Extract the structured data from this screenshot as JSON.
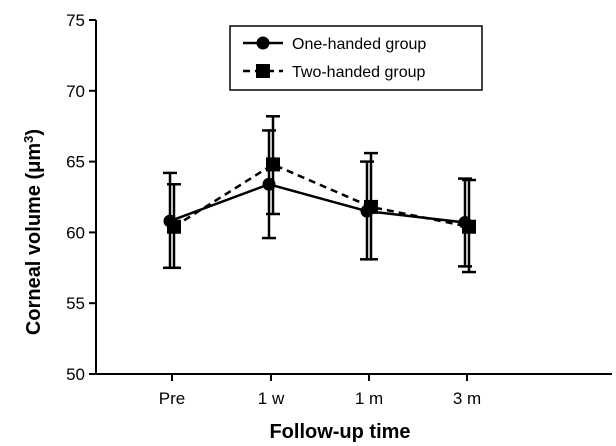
{
  "chart_data": {
    "type": "line",
    "categories": [
      "Pre",
      "1 w",
      "1 m",
      "3 m"
    ],
    "xlabel": "Follow-up time",
    "ylabel_main": "Corneal volume (μm",
    "ylabel_sup": "3",
    "ylabel_close": ")",
    "ylim": [
      50,
      75
    ],
    "yticks": [
      50,
      55,
      60,
      65,
      70,
      75
    ],
    "grid": false,
    "legend_position": "top-center",
    "series": [
      {
        "name": "One-handed group",
        "marker": "circle",
        "line_style": "solid",
        "color": "#000000",
        "values": [
          60.8,
          63.4,
          61.5,
          60.7
        ],
        "error_low": [
          57.5,
          59.6,
          58.1,
          57.6
        ],
        "error_high": [
          64.2,
          67.2,
          65.0,
          63.8
        ]
      },
      {
        "name": "Two-handed group",
        "marker": "square",
        "line_style": "dashed",
        "color": "#000000",
        "values": [
          60.4,
          64.8,
          61.8,
          60.4
        ],
        "error_low": [
          57.5,
          61.3,
          58.1,
          57.2
        ],
        "error_high": [
          63.4,
          68.2,
          65.6,
          63.7
        ]
      }
    ]
  }
}
